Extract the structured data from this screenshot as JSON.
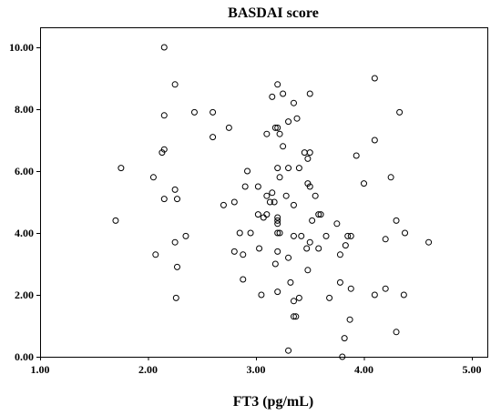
{
  "chart_data": {
    "type": "scatter",
    "title": "BASDAI score",
    "xlabel": "FT3 (pg/mL)",
    "ylabel": "",
    "xlim": [
      1.0,
      5.0
    ],
    "ylim": [
      0.0,
      10.0
    ],
    "x_ticks": [
      "1.00",
      "2.00",
      "3.00",
      "4.00",
      "5.00"
    ],
    "y_ticks": [
      "0.00",
      "2.00",
      "4.00",
      "6.00",
      "8.00",
      "10.00"
    ],
    "grid": false,
    "marker": "open-circle",
    "points": [
      {
        "x": 2.15,
        "y": 10.0
      },
      {
        "x": 2.25,
        "y": 8.8
      },
      {
        "x": 2.15,
        "y": 7.8
      },
      {
        "x": 2.43,
        "y": 7.9
      },
      {
        "x": 2.6,
        "y": 7.9
      },
      {
        "x": 2.75,
        "y": 7.4
      },
      {
        "x": 2.6,
        "y": 7.1
      },
      {
        "x": 2.15,
        "y": 6.7
      },
      {
        "x": 2.13,
        "y": 6.6
      },
      {
        "x": 1.75,
        "y": 6.1
      },
      {
        "x": 2.05,
        "y": 5.8
      },
      {
        "x": 2.25,
        "y": 5.4
      },
      {
        "x": 2.15,
        "y": 5.1
      },
      {
        "x": 2.27,
        "y": 5.1
      },
      {
        "x": 1.7,
        "y": 4.4
      },
      {
        "x": 2.35,
        "y": 3.9
      },
      {
        "x": 2.25,
        "y": 3.7
      },
      {
        "x": 2.07,
        "y": 3.3
      },
      {
        "x": 2.27,
        "y": 2.9
      },
      {
        "x": 2.26,
        "y": 1.9
      },
      {
        "x": 3.2,
        "y": 8.8
      },
      {
        "x": 3.25,
        "y": 8.5
      },
      {
        "x": 3.15,
        "y": 8.4
      },
      {
        "x": 3.5,
        "y": 8.5
      },
      {
        "x": 3.35,
        "y": 8.2
      },
      {
        "x": 3.3,
        "y": 7.6
      },
      {
        "x": 3.38,
        "y": 7.7
      },
      {
        "x": 3.18,
        "y": 7.4
      },
      {
        "x": 3.2,
        "y": 7.4
      },
      {
        "x": 3.1,
        "y": 7.2
      },
      {
        "x": 3.22,
        "y": 7.2
      },
      {
        "x": 3.25,
        "y": 6.8
      },
      {
        "x": 3.45,
        "y": 6.6
      },
      {
        "x": 3.5,
        "y": 6.6
      },
      {
        "x": 3.48,
        "y": 6.4
      },
      {
        "x": 3.2,
        "y": 6.1
      },
      {
        "x": 3.3,
        "y": 6.1
      },
      {
        "x": 3.4,
        "y": 6.1
      },
      {
        "x": 2.92,
        "y": 6.0
      },
      {
        "x": 3.22,
        "y": 5.8
      },
      {
        "x": 3.48,
        "y": 5.6
      },
      {
        "x": 3.5,
        "y": 5.5
      },
      {
        "x": 2.9,
        "y": 5.5
      },
      {
        "x": 3.02,
        "y": 5.5
      },
      {
        "x": 3.15,
        "y": 5.3
      },
      {
        "x": 3.1,
        "y": 5.2
      },
      {
        "x": 3.28,
        "y": 5.2
      },
      {
        "x": 3.55,
        "y": 5.2
      },
      {
        "x": 3.13,
        "y": 5.0
      },
      {
        "x": 3.17,
        "y": 5.0
      },
      {
        "x": 2.8,
        "y": 5.0
      },
      {
        "x": 2.7,
        "y": 4.9
      },
      {
        "x": 3.35,
        "y": 4.9
      },
      {
        "x": 3.02,
        "y": 4.6
      },
      {
        "x": 3.1,
        "y": 4.6
      },
      {
        "x": 3.07,
        "y": 4.5
      },
      {
        "x": 3.2,
        "y": 4.5
      },
      {
        "x": 3.58,
        "y": 4.6
      },
      {
        "x": 3.6,
        "y": 4.6
      },
      {
        "x": 3.2,
        "y": 4.4
      },
      {
        "x": 3.2,
        "y": 4.3
      },
      {
        "x": 3.52,
        "y": 4.4
      },
      {
        "x": 3.75,
        "y": 4.3
      },
      {
        "x": 2.95,
        "y": 4.0
      },
      {
        "x": 2.85,
        "y": 4.0
      },
      {
        "x": 3.2,
        "y": 4.0
      },
      {
        "x": 3.22,
        "y": 4.0
      },
      {
        "x": 3.35,
        "y": 3.9
      },
      {
        "x": 3.42,
        "y": 3.9
      },
      {
        "x": 3.65,
        "y": 3.9
      },
      {
        "x": 3.85,
        "y": 3.9
      },
      {
        "x": 3.88,
        "y": 3.9
      },
      {
        "x": 3.5,
        "y": 3.7
      },
      {
        "x": 3.03,
        "y": 3.5
      },
      {
        "x": 3.47,
        "y": 3.5
      },
      {
        "x": 3.58,
        "y": 3.5
      },
      {
        "x": 3.83,
        "y": 3.6
      },
      {
        "x": 2.8,
        "y": 3.4
      },
      {
        "x": 2.88,
        "y": 3.3
      },
      {
        "x": 3.2,
        "y": 3.4
      },
      {
        "x": 3.3,
        "y": 3.2
      },
      {
        "x": 3.78,
        "y": 3.3
      },
      {
        "x": 3.18,
        "y": 3.0
      },
      {
        "x": 3.48,
        "y": 2.8
      },
      {
        "x": 2.88,
        "y": 2.5
      },
      {
        "x": 3.32,
        "y": 2.4
      },
      {
        "x": 3.78,
        "y": 2.4
      },
      {
        "x": 3.05,
        "y": 2.0
      },
      {
        "x": 3.2,
        "y": 2.1
      },
      {
        "x": 3.4,
        "y": 1.9
      },
      {
        "x": 3.35,
        "y": 1.8
      },
      {
        "x": 3.68,
        "y": 1.9
      },
      {
        "x": 3.35,
        "y": 1.3
      },
      {
        "x": 3.37,
        "y": 1.3
      },
      {
        "x": 3.87,
        "y": 1.2
      },
      {
        "x": 3.3,
        "y": 0.2
      },
      {
        "x": 3.82,
        "y": 0.6
      },
      {
        "x": 3.8,
        "y": 0.0
      },
      {
        "x": 4.1,
        "y": 9.0
      },
      {
        "x": 4.33,
        "y": 7.9
      },
      {
        "x": 4.1,
        "y": 7.0
      },
      {
        "x": 3.93,
        "y": 6.5
      },
      {
        "x": 4.25,
        "y": 5.8
      },
      {
        "x": 4.0,
        "y": 5.6
      },
      {
        "x": 4.3,
        "y": 4.4
      },
      {
        "x": 4.38,
        "y": 4.0
      },
      {
        "x": 4.2,
        "y": 3.8
      },
      {
        "x": 4.6,
        "y": 3.7
      },
      {
        "x": 3.88,
        "y": 2.2
      },
      {
        "x": 4.2,
        "y": 2.2
      },
      {
        "x": 4.1,
        "y": 2.0
      },
      {
        "x": 4.37,
        "y": 2.0
      },
      {
        "x": 4.3,
        "y": 0.8
      }
    ]
  }
}
